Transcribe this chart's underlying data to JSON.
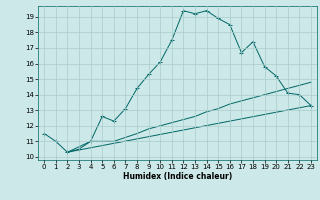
{
  "xlabel": "Humidex (Indice chaleur)",
  "bg_color": "#cce8e8",
  "line_color": "#006666",
  "grid_color": "#aacccc",
  "xlim": [
    -0.5,
    23.5
  ],
  "ylim": [
    9.8,
    19.7
  ],
  "yticks": [
    10,
    11,
    12,
    13,
    14,
    15,
    16,
    17,
    18,
    19
  ],
  "xticks": [
    0,
    1,
    2,
    3,
    4,
    5,
    6,
    7,
    8,
    9,
    10,
    11,
    12,
    13,
    14,
    15,
    16,
    17,
    18,
    19,
    20,
    21,
    22,
    23
  ],
  "line1_x": [
    0,
    1,
    2,
    3,
    4,
    5,
    6,
    7,
    8,
    9,
    10,
    11,
    12,
    13,
    14,
    15,
    16,
    17,
    18,
    19,
    20,
    21,
    22,
    23
  ],
  "line1_y": [
    11.5,
    11.0,
    10.3,
    10.5,
    11.0,
    12.6,
    12.3,
    13.1,
    14.4,
    15.3,
    16.1,
    17.5,
    19.4,
    19.2,
    19.4,
    18.9,
    18.5,
    16.7,
    17.4,
    15.8,
    15.2,
    14.1,
    14.0,
    13.3
  ],
  "line2_x": [
    2,
    4,
    5,
    6,
    8,
    9,
    10,
    11,
    13,
    14,
    15,
    16,
    17,
    18,
    19,
    20,
    21,
    22,
    23
  ],
  "line2_y": [
    10.3,
    11.0,
    11.0,
    11.0,
    11.5,
    11.8,
    12.0,
    12.2,
    12.6,
    12.9,
    13.1,
    13.4,
    13.6,
    13.8,
    14.0,
    14.2,
    14.4,
    14.6,
    14.8
  ],
  "line3_x": [
    2,
    23
  ],
  "line3_y": [
    10.3,
    13.3
  ]
}
